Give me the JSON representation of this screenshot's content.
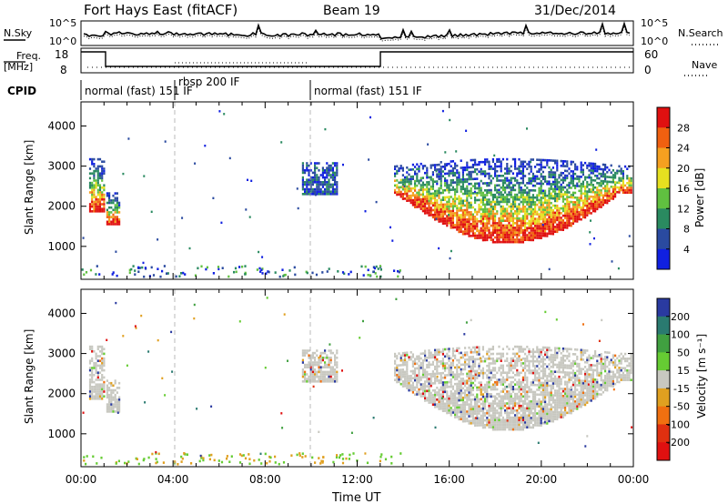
{
  "header": {
    "title": "Fort Hays East (fitACF)",
    "beam": "Beam 19",
    "date": "31/Dec/2014"
  },
  "top_panels": {
    "nsky": {
      "label": "N.Sky",
      "ticks_left": [
        "10^5",
        "10^0"
      ],
      "ticks_right": [
        "10^5",
        "10^0"
      ],
      "right_label": "N.Search"
    },
    "freq": {
      "label_line1": "Freq.",
      "label_line2": "[MHz]",
      "ticks_left": [
        "18",
        "8"
      ],
      "ticks_right": [
        "60",
        "0"
      ],
      "right_label": "Nave"
    },
    "cpid": {
      "label": "CPID",
      "segments": [
        {
          "text": "normal (fast)  151  IF",
          "start_hour": 0
        },
        {
          "text": "rbsp  200  IF",
          "start_hour": 4.0
        },
        {
          "text": "normal (fast)  151  IF",
          "start_hour": 10.0
        }
      ]
    }
  },
  "chart_data": [
    {
      "type": "heatmap",
      "name": "power",
      "xlabel": "",
      "ylabel": "Slant Range [km]",
      "xlim": [
        0,
        24
      ],
      "ylim": [
        180,
        4600
      ],
      "yticks": [
        "1000",
        "2000",
        "3000",
        "4000"
      ],
      "colorbar": {
        "label": "Power [dB]",
        "ticks": [
          "28",
          "24",
          "20",
          "16",
          "12",
          "8",
          "4"
        ],
        "colors": [
          "#e01010",
          "#f06010",
          "#f5a020",
          "#e6e020",
          "#60c040",
          "#2a8a60",
          "#2a4aa0",
          "#1020e0"
        ]
      },
      "echo_regions": [
        {
          "t": [
            0.35,
            1.0
          ],
          "r": [
            1900,
            3200
          ],
          "level": "strong"
        },
        {
          "t": [
            1.1,
            1.65
          ],
          "r": [
            1550,
            2350
          ],
          "level": "strong"
        },
        {
          "t": [
            9.6,
            11.1
          ],
          "r": [
            2300,
            3100
          ],
          "level": "weak"
        },
        {
          "t": [
            13.6,
            23.95
          ],
          "r": [
            1100,
            3200
          ],
          "level": "strong"
        }
      ]
    },
    {
      "type": "heatmap",
      "name": "velocity",
      "xlabel": "Time UT",
      "ylabel": "Slant Range [km]",
      "xlim": [
        0,
        24
      ],
      "ylim": [
        180,
        4600
      ],
      "xticks": [
        "00:00",
        "04:00",
        "08:00",
        "12:00",
        "16:00",
        "20:00",
        "00:00"
      ],
      "yticks": [
        "1000",
        "2000",
        "3000",
        "4000"
      ],
      "colorbar": {
        "label": "Velocity [m s⁻¹]",
        "ticks": [
          "200",
          "100",
          "50",
          "15",
          "-15",
          "-50",
          "-100",
          "-200"
        ],
        "colors": [
          "#2a3aa0",
          "#2a7a70",
          "#40a040",
          "#66cc33",
          "#c8c8c0",
          "#e0a020",
          "#f07010",
          "#e03010",
          "#e01010"
        ]
      },
      "echo_regions": [
        {
          "t": [
            0.35,
            1.0
          ],
          "r": [
            1900,
            3200
          ],
          "level": "ground"
        },
        {
          "t": [
            1.1,
            1.65
          ],
          "r": [
            1550,
            2350
          ],
          "level": "ground"
        },
        {
          "t": [
            9.6,
            11.1
          ],
          "r": [
            2300,
            3100
          ],
          "level": "ground"
        },
        {
          "t": [
            13.6,
            23.95
          ],
          "r": [
            1100,
            3200
          ],
          "level": "ground"
        }
      ]
    }
  ]
}
